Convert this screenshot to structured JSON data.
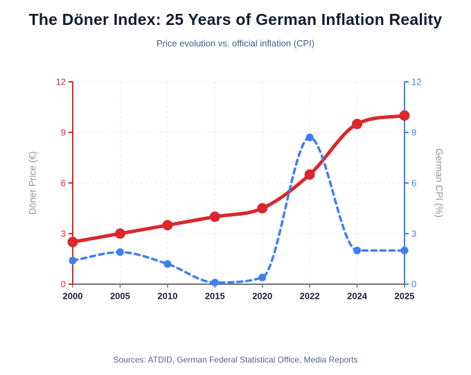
{
  "chart_data": {
    "type": "line",
    "title": "The Döner Index: 25 Years of German Inflation Reality",
    "subtitle": "Price evolution vs. official inflation (CPI)",
    "source_note": "Sources: ATDID, German Federal Statistical Office, Media Reports",
    "categories": [
      "2000",
      "2005",
      "2010",
      "2015",
      "2020",
      "2022",
      "2024",
      "2025"
    ],
    "series": [
      {
        "name": "Döner Price (€)",
        "slug": "doner-price",
        "axis": "left",
        "color": "#d8282d",
        "line_style": "solid",
        "line_width": 5,
        "marker": "circle",
        "marker_radius": 7.5,
        "values": [
          2.5,
          3.0,
          3.5,
          4.0,
          4.5,
          6.5,
          9.5,
          10.0
        ]
      },
      {
        "name": "German CPI (%)",
        "slug": "german-cpi",
        "axis": "right",
        "color": "#3f7ef4",
        "line_style": "dashed",
        "line_width": 3.5,
        "marker": "circle",
        "marker_radius": 5.5,
        "values": [
          1.4,
          1.9,
          1.2,
          0.1,
          0.4,
          8.7,
          2.0,
          2.0
        ]
      }
    ],
    "left_axis": {
      "label": "Döner Price (€)",
      "ticks": [
        0,
        3,
        6,
        9,
        12
      ],
      "range": [
        0,
        12
      ],
      "color": "#d8282d"
    },
    "right_axis": {
      "label": "German CPI (%)",
      "ticks": [
        0,
        3,
        6,
        9,
        12
      ],
      "range": [
        0,
        12
      ],
      "color": "#3f7ef4"
    },
    "x_axis": {
      "line_color": "#6e7278",
      "label_color": "#1a2030"
    },
    "grid": {
      "show": true,
      "style": "dashed",
      "color": "#e4e4e4"
    },
    "legend": {
      "show": false
    },
    "title_color": "#141c33",
    "subtitle_color": "#40598c",
    "source_color": "#566584",
    "axis_title_color": "#92959b",
    "background": "#ffffff"
  }
}
